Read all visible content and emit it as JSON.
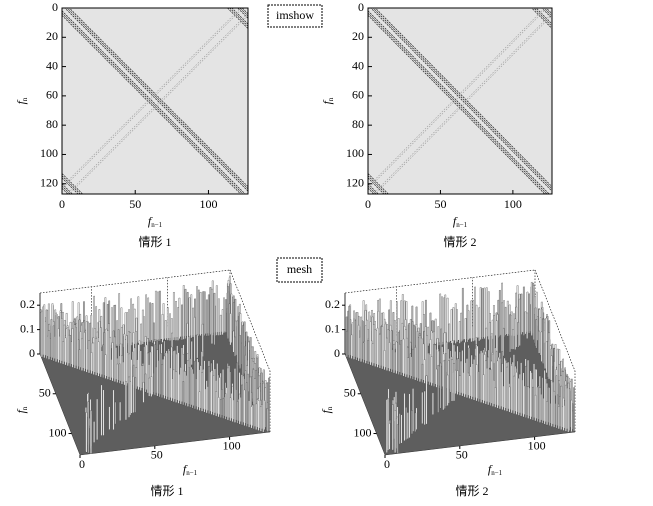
{
  "panel_labels": [
    "imshow",
    "mesh"
  ],
  "chart_data": [
    {
      "type": "heatmap",
      "title": "情形 1",
      "xlabel": {
        "text": "f",
        "subscript": "n−1"
      },
      "ylabel": {
        "text": "f",
        "subscript": "n"
      },
      "xlim": [
        0,
        127
      ],
      "ylim": [
        127,
        0
      ],
      "xticks": [
        0,
        50,
        100
      ],
      "yticks": [
        0,
        20,
        40,
        60,
        80,
        100,
        120
      ]
    },
    {
      "type": "heatmap",
      "title": "情形 2",
      "xlabel": {
        "text": "f",
        "subscript": "n−1"
      },
      "ylabel": {
        "text": "f",
        "subscript": "n"
      },
      "xlim": [
        0,
        127
      ],
      "ylim": [
        127,
        0
      ],
      "xticks": [
        0,
        50,
        100
      ],
      "yticks": [
        0,
        20,
        40,
        60,
        80,
        100,
        120
      ]
    },
    {
      "type": "surface",
      "title": "情形 1",
      "xlabel": {
        "text": "f",
        "subscript": "n−1"
      },
      "ylabel": {
        "text": "f",
        "subscript": "n"
      },
      "xlim": [
        0,
        127
      ],
      "ylim": [
        0,
        127
      ],
      "zlim": [
        0,
        0.25
      ],
      "xticks": [
        0,
        50,
        100
      ],
      "yticks": [
        50,
        100
      ],
      "zticks": [
        0,
        0.1,
        0.2
      ]
    },
    {
      "type": "surface",
      "title": "情形 2",
      "xlabel": {
        "text": "f",
        "subscript": "n−1"
      },
      "ylabel": {
        "text": "f",
        "subscript": "n"
      },
      "xlim": [
        0,
        127
      ],
      "ylim": [
        0,
        127
      ],
      "zlim": [
        0,
        0.25
      ],
      "xticks": [
        0,
        50,
        100
      ],
      "yticks": [
        50,
        100
      ],
      "zticks": [
        0,
        0.1,
        0.2
      ]
    }
  ]
}
